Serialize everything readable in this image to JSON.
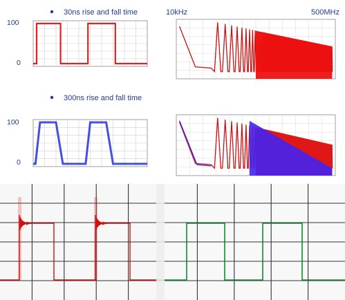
{
  "captions": {
    "row1": "30ns rise and fall time",
    "row2": "300ns rise and fall time",
    "freq_low": "10kHz",
    "freq_high": "500MHz"
  },
  "chart_data": [
    {
      "type": "line",
      "title": "30ns rise and fall time",
      "y_ticks": [
        "100",
        "0"
      ],
      "ylim": [
        0,
        100
      ],
      "grid": true,
      "series": [
        {
          "color": "#dd2222",
          "points": [
            [
              0,
              0
            ],
            [
              0.03,
              0
            ],
            [
              0.03,
              100
            ],
            [
              0.24,
              100
            ],
            [
              0.24,
              0
            ],
            [
              0.48,
              0
            ],
            [
              0.48,
              100
            ],
            [
              0.72,
              100
            ],
            [
              0.72,
              0
            ],
            [
              1,
              0
            ]
          ]
        }
      ]
    },
    {
      "type": "line",
      "title": "300ns rise and fall time",
      "y_ticks": [
        "100",
        "0"
      ],
      "ylim": [
        0,
        100
      ],
      "grid": true,
      "series": [
        {
          "color": "#4450dd",
          "points": [
            [
              0,
              0
            ],
            [
              0.02,
              0
            ],
            [
              0.06,
              100
            ],
            [
              0.2,
              100
            ],
            [
              0.26,
              0
            ],
            [
              0.46,
              0
            ],
            [
              0.5,
              100
            ],
            [
              0.64,
              100
            ],
            [
              0.7,
              0
            ],
            [
              1,
              0
            ]
          ]
        }
      ]
    },
    {
      "type": "line",
      "title": "",
      "x_scale": "log",
      "x_range_labels": [
        "10kHz",
        "500MHz"
      ],
      "grid": true,
      "series": [
        {
          "color": "#cc1111",
          "style": "harmonic spectrum, dense red fill"
        }
      ]
    },
    {
      "type": "line",
      "title": "",
      "x_scale": "log",
      "grid": true,
      "series": [
        {
          "color": "#cc1111",
          "style": "harmonic spectrum (30ns)"
        },
        {
          "color": "#4422ee",
          "style": "harmonic spectrum (300ns), purple fill"
        }
      ]
    },
    {
      "type": "line",
      "title": "",
      "grid": true,
      "series": [
        {
          "color": "#cc1111",
          "style": "square wave with ringing at edges"
        }
      ]
    },
    {
      "type": "line",
      "title": "",
      "grid": true,
      "series": [
        {
          "color": "#118833",
          "style": "clean square wave"
        }
      ]
    }
  ]
}
